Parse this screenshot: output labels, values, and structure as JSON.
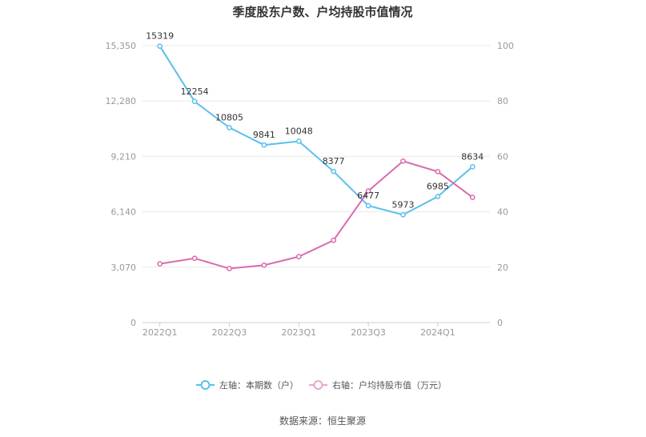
{
  "chart_data": {
    "type": "line",
    "title": "季度股东户数、户均持股市值情况",
    "categories": [
      "2022Q1",
      "2022Q2",
      "2022Q3",
      "2022Q4",
      "2023Q1",
      "2023Q2",
      "2023Q3",
      "2023Q4",
      "2024Q1",
      "2024Q2"
    ],
    "x_tick_labels": [
      "2022Q1",
      "2022Q3",
      "2023Q1",
      "2023Q3",
      "2024Q1"
    ],
    "left_axis": {
      "ticks": [
        "0",
        "3,070",
        "6,140",
        "9,210",
        "12,280",
        "15,350"
      ],
      "ylim": [
        0,
        15350
      ]
    },
    "right_axis": {
      "ticks": [
        "0",
        "20",
        "40",
        "60",
        "80",
        "100"
      ],
      "ylim": [
        0,
        100
      ]
    },
    "series": [
      {
        "name": "左轴：本期数（户）",
        "axis": "left",
        "color": "#5bc0eb",
        "values": [
          15319,
          12254,
          10805,
          9841,
          10048,
          8377,
          6477,
          5973,
          6985,
          8634
        ],
        "labels": [
          "15319",
          "12254",
          "10805",
          "9841",
          "10048",
          "8377",
          "6477",
          "5973",
          "6985",
          "8634"
        ]
      },
      {
        "name": "右轴：户均持股市值（万元）",
        "axis": "right",
        "color": "#d96aaf",
        "values": [
          21.2,
          23.2,
          19.5,
          20.7,
          23.8,
          29.7,
          47.5,
          58.3,
          54.5,
          45.2
        ]
      }
    ],
    "grid": true,
    "legend_position": "bottom"
  },
  "source": "数据来源：恒生聚源"
}
